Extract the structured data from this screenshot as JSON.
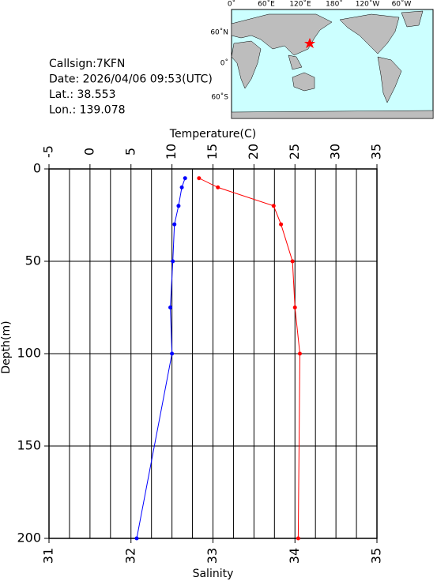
{
  "info": [
    "Callsign:7KFN",
    "Date:  2026/04/06 09:53(UTC)",
    "Lat.:  38.553",
    "Lon.:  139.078"
  ],
  "map": {
    "lon_labels": [
      "0˚",
      "60˚E",
      "120˚E",
      "180˚",
      "120˚W",
      "60˚W"
    ],
    "lat_labels": [
      "60˚N",
      "0˚",
      "60˚S"
    ]
  },
  "chart_data": {
    "type": "line",
    "x_label": "Temperature(C)",
    "x2_label": "Salinity",
    "y_label": "Depth(m)",
    "xlim": [
      -5,
      35
    ],
    "xticks": [
      -5,
      0,
      5,
      10,
      15,
      20,
      25,
      30,
      35
    ],
    "x_grid": [
      -5,
      -2.5,
      0,
      2.5,
      5,
      7.5,
      10,
      12.5,
      15,
      17.5,
      20,
      22.5,
      25,
      27.5,
      30,
      32.5,
      35
    ],
    "x2lim": [
      31,
      35
    ],
    "x2ticks": [
      31,
      32,
      33,
      34,
      35
    ],
    "ylim": [
      0,
      200
    ],
    "y_inverted": true,
    "yticks": [
      0,
      50,
      100,
      150,
      200
    ],
    "grid": true,
    "series": [
      {
        "color": "#ff0000",
        "x": [
          13.3,
          15.6,
          22.4,
          23.3,
          24.7,
          25.0,
          25.6,
          25.4
        ],
        "y": [
          5,
          10,
          20,
          30,
          50,
          75,
          100,
          200
        ]
      },
      {
        "color": "#0000ff",
        "axis": "x2",
        "x": [
          32.66,
          32.62,
          32.58,
          32.53,
          32.51,
          32.48,
          32.5,
          32.07
        ],
        "y": [
          5,
          10,
          20,
          30,
          50,
          75,
          100,
          200
        ]
      }
    ]
  }
}
